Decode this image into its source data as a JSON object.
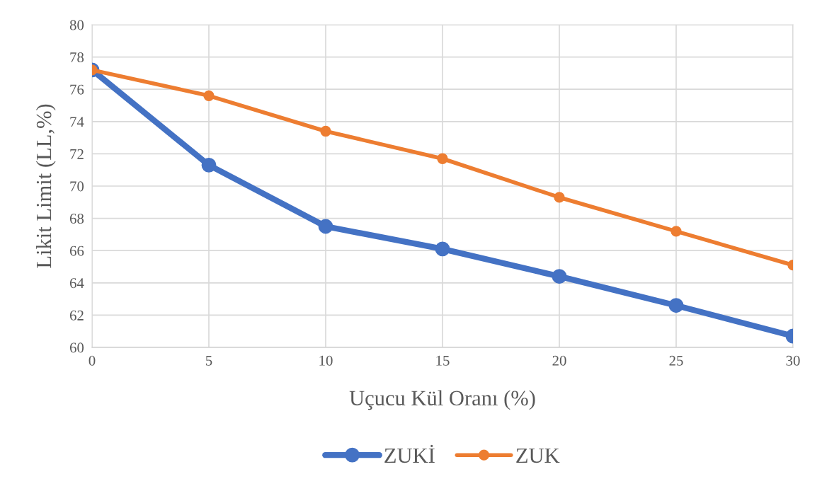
{
  "chart_data": {
    "type": "line",
    "xlabel": "Uçucu Kül Oranı (%)",
    "ylabel": "Likit Limit (LL,%)",
    "x": [
      0,
      5,
      10,
      15,
      20,
      25,
      30
    ],
    "series": [
      {
        "name": "ZUKİ",
        "color": "#4472c4",
        "values": [
          77.2,
          71.3,
          67.5,
          66.1,
          64.4,
          62.6,
          60.7
        ]
      },
      {
        "name": "ZUK",
        "color": "#ed7d31",
        "values": [
          77.2,
          75.6,
          73.4,
          71.7,
          69.3,
          67.2,
          65.1
        ]
      }
    ],
    "xlim": [
      0,
      30
    ],
    "xticks": [
      0,
      5,
      10,
      15,
      20,
      25,
      30
    ],
    "ylim": [
      60,
      80
    ],
    "yticks": [
      60,
      62,
      64,
      66,
      68,
      70,
      72,
      74,
      76,
      78,
      80
    ],
    "grid": true,
    "legend": "bottom",
    "marker": "circle",
    "line_style": "solid"
  }
}
